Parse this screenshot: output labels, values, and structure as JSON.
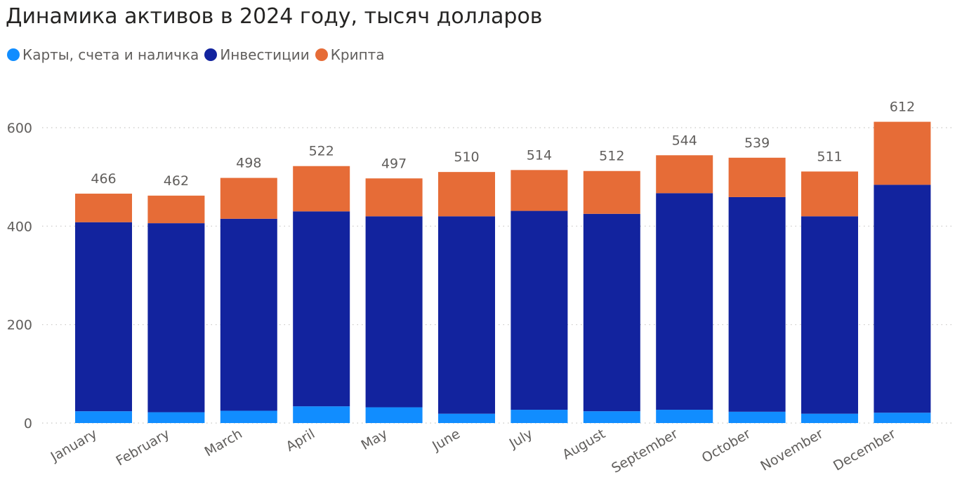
{
  "chart_data": {
    "type": "bar",
    "stacked": true,
    "title": "Динамика активов в 2024 году, тысяч долларов",
    "categories": [
      "January",
      "February",
      "March",
      "April",
      "May",
      "June",
      "July",
      "August",
      "September",
      "October",
      "November",
      "December"
    ],
    "series": [
      {
        "name": "Карты, счета и наличка",
        "color": "#118dff",
        "values": [
          24,
          22,
          25,
          34,
          32,
          19,
          27,
          24,
          27,
          23,
          19,
          21
        ]
      },
      {
        "name": "Инвестиции",
        "color": "#12239e",
        "values": [
          384,
          384,
          390,
          396,
          388,
          401,
          404,
          401,
          440,
          436,
          401,
          463
        ]
      },
      {
        "name": "Крипта",
        "color": "#e66c37",
        "values": [
          58,
          56,
          83,
          92,
          77,
          90,
          83,
          87,
          77,
          80,
          91,
          128
        ]
      }
    ],
    "totals": [
      "466",
      "462",
      "498",
      "522",
      "497",
      "510",
      "514",
      "512",
      "544",
      "539",
      "511",
      "612"
    ],
    "yticks": [
      "0",
      "200",
      "400",
      "600"
    ],
    "ylim": [
      0,
      600
    ],
    "grid": true,
    "legend_position": "top-left"
  }
}
